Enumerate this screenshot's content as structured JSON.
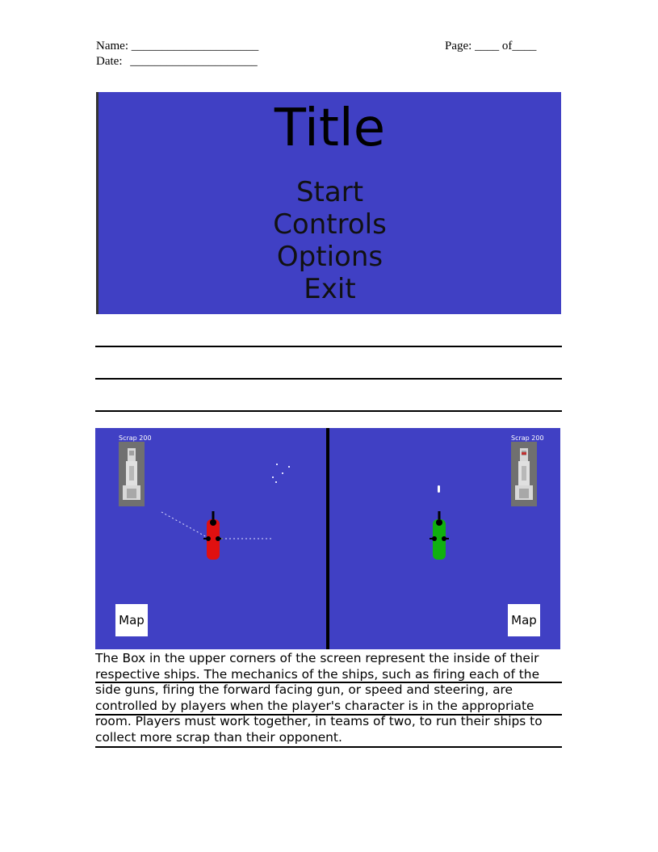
{
  "header": {
    "name_label": "Name:",
    "name_blank": "_____________________",
    "date_label": "Date:",
    "date_blank": "_____________________",
    "page_label": "Page:",
    "page_blank": "____",
    "of_label": "of",
    "of_blank": "____"
  },
  "title_screen": {
    "title": "Title",
    "menu": [
      "Start",
      "Controls",
      "Options",
      "Exit"
    ],
    "background_color": "#4040c4"
  },
  "game_screen": {
    "left": {
      "scrap_label": "Scrap 200",
      "map_label": "Map",
      "ship_color": "#e01010"
    },
    "right": {
      "scrap_label": "Scrap 200",
      "map_label": "Map",
      "ship_color": "#10b010"
    }
  },
  "description": "The Box in the upper corners of the screen represent the inside of their respective ships. The mechanics of the ships, such as firing each of the side guns, firing the forward facing gun, or speed and steering, are controlled by players when the player's character is in the appropriate room. Players must work together, in teams of two, to run their ships to collect more scrap than their opponent."
}
